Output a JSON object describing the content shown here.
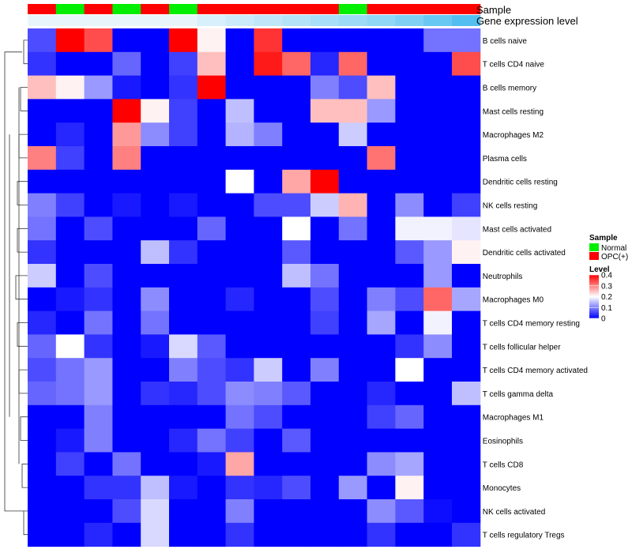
{
  "chart_data": {
    "type": "heatmap",
    "title": "",
    "annotation_labels": [
      "Sample",
      "Gene expression level"
    ],
    "sample_groups": [
      "OPC(+)",
      "Normal",
      "OPC(+)",
      "Normal",
      "OPC(+)",
      "Normal",
      "OPC(+)",
      "OPC(+)",
      "OPC(+)",
      "OPC(+)",
      "OPC(+)",
      "Normal",
      "OPC(+)",
      "OPC(+)",
      "OPC(+)",
      "OPC(+)"
    ],
    "expression_level": [
      0,
      0,
      0,
      0,
      0,
      0,
      0.1,
      0.17,
      0.24,
      0.31,
      0.38,
      0.45,
      0.52,
      0.62,
      0.75,
      0.88
    ],
    "rows": [
      "B cells naive",
      "T cells CD4 naive",
      "B cells memory",
      "Mast cells resting",
      "Macrophages M2",
      "Plasma cells",
      "Dendritic cells resting",
      "NK cells resting",
      "Mast cells activated",
      "Dendritic cells activated",
      "Neutrophils",
      "Macrophages M0",
      "T cells CD4 memory resting",
      "T cells follicular helper",
      "T cells CD4 memory activated",
      "T cells gamma delta",
      "Macrophages M1",
      "Eosinophils",
      "T cells CD8",
      "Monocytes",
      "NK cells activated",
      "T cells regulatory  Tregs"
    ],
    "values": [
      [
        0.06,
        0.4,
        0.34,
        0,
        0,
        0.4,
        0.21,
        0,
        0.36,
        0,
        0,
        0,
        0,
        0,
        0.09,
        0.09
      ],
      [
        0.04,
        0,
        0,
        0.08,
        0,
        0.05,
        0.25,
        0,
        0.38,
        0.32,
        0.03,
        0.32,
        0,
        0,
        0,
        0.34
      ],
      [
        0.25,
        0.21,
        0.12,
        0.02,
        0,
        0.04,
        0.4,
        0,
        0,
        0,
        0.1,
        0.06,
        0.25,
        0,
        0,
        0
      ],
      [
        0,
        0,
        0,
        0.4,
        0.21,
        0.05,
        0,
        0.15,
        0,
        0,
        0.25,
        0.25,
        0.12,
        0,
        0,
        0
      ],
      [
        0,
        0.03,
        0,
        0.28,
        0.11,
        0.05,
        0,
        0.14,
        0.1,
        0,
        0,
        0.16,
        0,
        0,
        0,
        0
      ],
      [
        0.3,
        0.05,
        0,
        0.3,
        0,
        0,
        0,
        0,
        0,
        0,
        0,
        0,
        0.31,
        0,
        0,
        0
      ],
      [
        0,
        0,
        0,
        0,
        0,
        0,
        0,
        0.2,
        0,
        0.27,
        0.4,
        0,
        0,
        0,
        0,
        0
      ],
      [
        0.1,
        0.05,
        0,
        0.02,
        0,
        0.02,
        0,
        0,
        0.06,
        0.06,
        0.16,
        0.26,
        0,
        0.11,
        0,
        0.05
      ],
      [
        0.09,
        0,
        0.06,
        0,
        0,
        0,
        0.08,
        0,
        0,
        0.2,
        0,
        0.09,
        0,
        0.19,
        0.19,
        0.18
      ],
      [
        0.04,
        0,
        0,
        0,
        0.15,
        0.04,
        0,
        0,
        0,
        0.07,
        0,
        0,
        0,
        0.07,
        0.12,
        0.21
      ],
      [
        0.16,
        0,
        0.06,
        0,
        0,
        0,
        0,
        0,
        0,
        0.15,
        0.09,
        0,
        0,
        0,
        0.12,
        0
      ],
      [
        0,
        0.02,
        0.04,
        0,
        0.11,
        0,
        0,
        0.03,
        0,
        0,
        0.06,
        0,
        0.1,
        0.06,
        0.32,
        0.13
      ],
      [
        0.03,
        0,
        0.09,
        0,
        0.09,
        0,
        0,
        0,
        0,
        0,
        0.05,
        0,
        0.13,
        0,
        0.19,
        0
      ],
      [
        0.08,
        0.2,
        0.04,
        0,
        0.02,
        0.17,
        0.07,
        0,
        0,
        0,
        0,
        0,
        0,
        0.04,
        0.11,
        0
      ],
      [
        0.06,
        0.09,
        0.12,
        0,
        0,
        0.1,
        0.06,
        0.04,
        0.16,
        0,
        0.1,
        0,
        0,
        0.2,
        0,
        0
      ],
      [
        0.08,
        0.09,
        0.12,
        0,
        0.04,
        0.03,
        0.06,
        0.11,
        0.1,
        0.07,
        0,
        0,
        0.03,
        0,
        0,
        0.15
      ],
      [
        0,
        0,
        0.1,
        0,
        0,
        0,
        0,
        0.09,
        0.06,
        0,
        0,
        0,
        0.05,
        0.08,
        0,
        0
      ],
      [
        0,
        0.02,
        0.1,
        0,
        0,
        0.03,
        0.09,
        0.05,
        0,
        0.07,
        0,
        0,
        0,
        0,
        0,
        0
      ],
      [
        0,
        0.05,
        0,
        0.09,
        0,
        0,
        0.02,
        0.27,
        0,
        0,
        0,
        0,
        0.11,
        0.13,
        0,
        0
      ],
      [
        0,
        0,
        0.04,
        0.04,
        0.15,
        0.02,
        0,
        0.04,
        0.03,
        0.06,
        0,
        0.12,
        0,
        0.21,
        0,
        0
      ],
      [
        0,
        0,
        0,
        0.06,
        0.17,
        0,
        0,
        0.1,
        0,
        0,
        0,
        0,
        0.11,
        0.07,
        0.01,
        0
      ],
      [
        0,
        0,
        0.03,
        0,
        0.17,
        0,
        0,
        0.04,
        0,
        0,
        0,
        0,
        0.04,
        0,
        0,
        0.04
      ]
    ],
    "color_scale": {
      "low": "#0000ff",
      "mid": "#ffffff",
      "high": "#ff0000",
      "domain": [
        0,
        0.4
      ],
      "mid_value": 0.2
    },
    "group_colors": {
      "Normal": "#00ee00",
      "OPC(+)": "#ff0000"
    },
    "expression_colors": {
      "low": "#e8f6fc",
      "high": "#3fb8ee"
    },
    "legends": {
      "sample": {
        "title": "Sample",
        "entries": [
          "Normal",
          "OPC(+)"
        ]
      },
      "level": {
        "title": "Level",
        "ticks": [
          0,
          0.1,
          0.2,
          0.3,
          0.4
        ]
      }
    }
  }
}
